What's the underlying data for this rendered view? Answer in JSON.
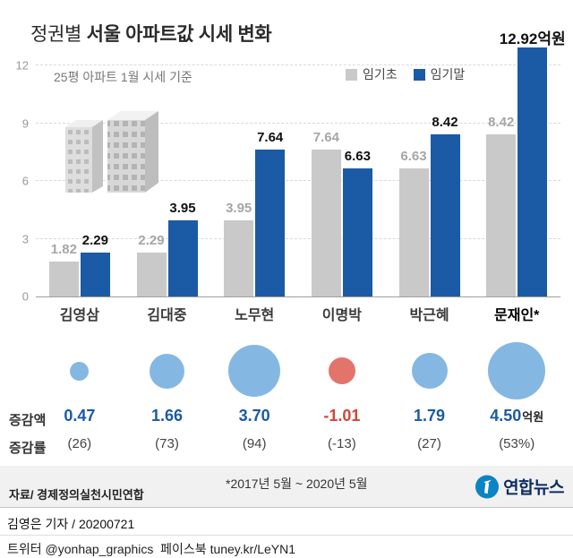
{
  "colors": {
    "bar_start": "#c9c9c9",
    "bar_end": "#1b5aa5",
    "circle_positive": "#85b7e3",
    "circle_negative": "#e2746b",
    "value_positive": "#1b5aa5",
    "value_negative": "#d2453a",
    "band_bg": "#f1f1f1",
    "logo_blue": "#0b84c4"
  },
  "header": {
    "title_prefix": "정권별",
    "title_main": "서울 아파트값 시세 변화",
    "subtitle": "25평 아파트 1월 시세 기준",
    "legend_start": "임기초",
    "legend_end": "임기말"
  },
  "chart_data": {
    "type": "bar",
    "unit": "억원",
    "categories": [
      "김영삼",
      "김대중",
      "노무현",
      "이명박",
      "박근혜",
      "문재인*"
    ],
    "series": [
      {
        "name": "임기초",
        "values": [
          1.82,
          2.29,
          3.95,
          7.64,
          6.63,
          8.42
        ]
      },
      {
        "name": "임기말",
        "values": [
          2.29,
          3.95,
          7.64,
          6.63,
          8.42,
          12.92
        ]
      }
    ],
    "start_display": [
      "1.82",
      "2.29",
      "3.95",
      "7.64",
      "6.63",
      "8.42"
    ],
    "end_display": [
      "2.29",
      "3.95",
      "7.64",
      "6.63",
      "8.42",
      "12.92억원"
    ],
    "yticks": [
      0,
      3,
      6,
      9,
      12
    ],
    "ylim": [
      0,
      12
    ],
    "grid": "dashed horizontal",
    "legend_position": "top",
    "change_amount": [
      0.47,
      1.66,
      3.7,
      -1.01,
      1.79,
      4.5
    ],
    "change_rate_pct": [
      26,
      73,
      94,
      -13,
      27,
      53
    ]
  },
  "stats": {
    "amount_label": "증감액",
    "rate_label": "증감률",
    "amount_display": [
      "0.47",
      "1.66",
      "3.70",
      "-1.01",
      "1.79",
      "4.50"
    ],
    "amount_unit": "억원",
    "rate_display": [
      "(26)",
      "(73)",
      "(94)",
      "(-13)",
      "(27)",
      "(53%)"
    ]
  },
  "footnotes": {
    "period": "*2017년 5월 ~ 2020년 5월",
    "source": "자료/ 경제정의실천시민연합"
  },
  "logo": {
    "wordmark": "연합뉴스"
  },
  "footer": {
    "byline": "김영은 기자 / 20200721",
    "social": "트위터 @yonhap_graphics  페이스북 tuney.kr/LeYN1"
  }
}
